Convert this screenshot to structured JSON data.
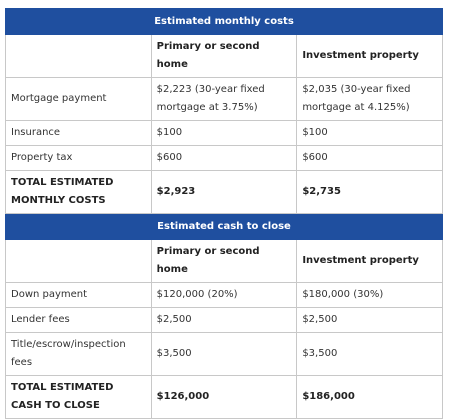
{
  "sections": [
    {
      "title": "Estimated monthly costs",
      "columns": [
        "Primary or second home",
        "Investment property"
      ],
      "rows": [
        {
          "label": "Mortgage payment",
          "cells": [
            "$2,223 (30-year fixed mortgage at 3.75%)",
            "$2,035 (30-year fixed mortgage at 4.125%)"
          ]
        },
        {
          "label": "Insurance",
          "cells": [
            "$100",
            "$100"
          ]
        },
        {
          "label": "Property tax",
          "cells": [
            "$600",
            "$600"
          ]
        },
        {
          "label": "TOTAL ESTIMATED MONTHLY COSTS",
          "cells": [
            "$2,923",
            "$2,735"
          ],
          "total": true
        }
      ]
    },
    {
      "title": "Estimated cash to close",
      "columns": [
        "Primary or second home",
        "Investment property"
      ],
      "rows": [
        {
          "label": "Down payment",
          "cells": [
            "$120,000 (20%)",
            "$180,000 (30%)"
          ]
        },
        {
          "label": "Lender fees",
          "cells": [
            "$2,500",
            "$2,500"
          ]
        },
        {
          "label": "Title/escrow/inspection fees",
          "cells": [
            "$3,500",
            "$3,500"
          ]
        },
        {
          "label": "TOTAL ESTIMATED CASH TO CLOSE",
          "cells": [
            "$126,000",
            "$186,000"
          ],
          "total": true
        }
      ]
    }
  ]
}
